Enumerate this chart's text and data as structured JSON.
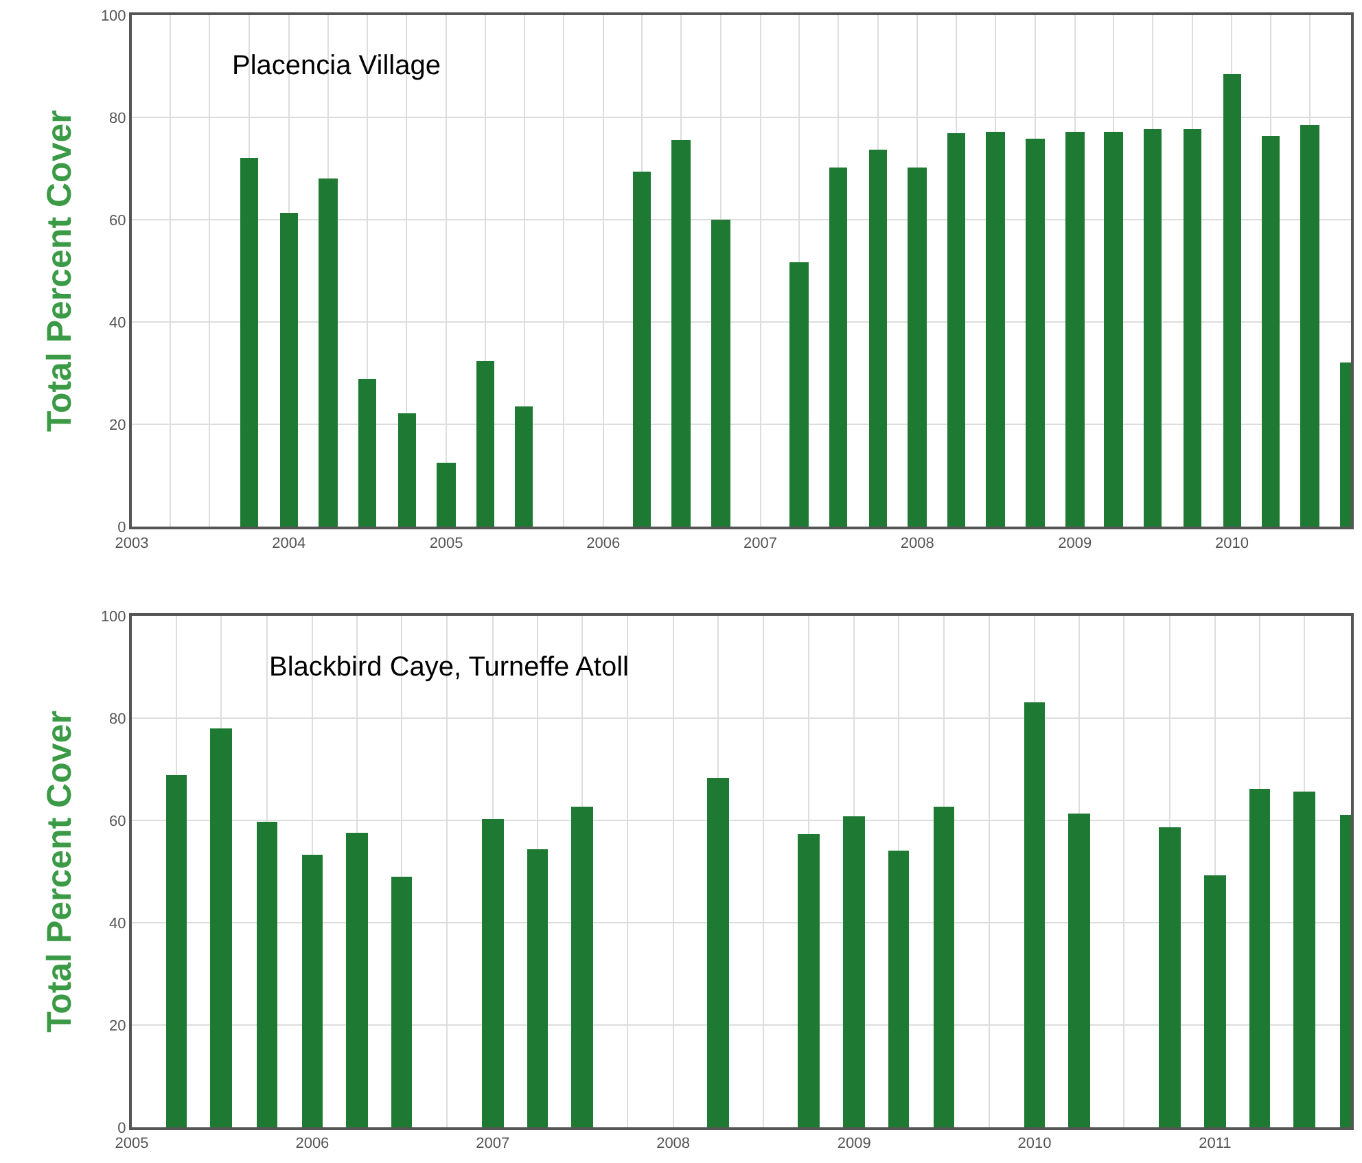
{
  "chart_data": [
    {
      "type": "bar",
      "ylabel": "Total Percent Cover",
      "annotations": [
        "Placencia Village"
      ],
      "color": "#1e7a32",
      "x": [
        "2003-10",
        "2004-01",
        "2004-04",
        "2004-07",
        "2004-10",
        "2005-01",
        "2005-04",
        "2005-07",
        "2006-04",
        "2006-07",
        "2006-10",
        "2007-04",
        "2007-07",
        "2007-10",
        "2008-01",
        "2008-04",
        "2008-07",
        "2008-10",
        "2009-01",
        "2009-04",
        "2009-07",
        "2009-10",
        "2010-01",
        "2010-04",
        "2010-07",
        "2010-10"
      ],
      "values": [
        72,
        61.4,
        68.1,
        28.8,
        22.3,
        12.5,
        32.4,
        23.4,
        69.4,
        75.5,
        59.9,
        51.7,
        70.1,
        73.7,
        70.1,
        76.8,
        77.1,
        75.9,
        77.1,
        77.1,
        77.8,
        77.7,
        88.5,
        76.4,
        78.6,
        32.2
      ],
      "xlim": [
        "2003-01-01",
        "2010-10-05"
      ],
      "xticks": [
        {
          "value": "2003-01-01",
          "label": "2003"
        },
        {
          "value": "2003-04-01",
          "label": null
        },
        {
          "value": "2003-07-01",
          "label": null
        },
        {
          "value": "2003-10-01",
          "label": null
        },
        {
          "value": "2004-01-01",
          "label": "2004"
        },
        {
          "value": "2004-04-01",
          "label": null
        },
        {
          "value": "2004-07-01",
          "label": null
        },
        {
          "value": "2004-10-01",
          "label": null
        },
        {
          "value": "2005-01-01",
          "label": "2005"
        },
        {
          "value": "2005-04-01",
          "label": null
        },
        {
          "value": "2005-07-01",
          "label": null
        },
        {
          "value": "2005-10-01",
          "label": null
        },
        {
          "value": "2006-01-01",
          "label": "2006"
        },
        {
          "value": "2006-04-01",
          "label": null
        },
        {
          "value": "2006-07-01",
          "label": null
        },
        {
          "value": "2006-10-01",
          "label": null
        },
        {
          "value": "2007-01-01",
          "label": "2007"
        },
        {
          "value": "2007-04-01",
          "label": null
        },
        {
          "value": "2007-07-01",
          "label": null
        },
        {
          "value": "2007-10-01",
          "label": null
        },
        {
          "value": "2008-01-01",
          "label": "2008"
        },
        {
          "value": "2008-04-01",
          "label": null
        },
        {
          "value": "2008-07-01",
          "label": null
        },
        {
          "value": "2008-10-01",
          "label": null
        },
        {
          "value": "2009-01-01",
          "label": "2009"
        },
        {
          "value": "2009-04-01",
          "label": null
        },
        {
          "value": "2009-07-01",
          "label": null
        },
        {
          "value": "2009-10-01",
          "label": null
        },
        {
          "value": "2010-01-01",
          "label": "2010"
        },
        {
          "value": "2010-04-01",
          "label": null
        },
        {
          "value": "2010-07-01",
          "label": null
        }
      ],
      "ylim": [
        0,
        100
      ],
      "yticks": [
        0,
        20,
        40,
        60,
        80,
        100
      ],
      "grid": true
    },
    {
      "type": "bar",
      "ylabel": "Total Percent Cover",
      "annotations": [
        "Blackbird Caye, Turneffe Atoll"
      ],
      "color": "#1e7a32",
      "x": [
        "2005-04",
        "2005-07",
        "2005-10",
        "2006-01",
        "2006-04",
        "2006-07",
        "2007-01",
        "2007-04",
        "2007-07",
        "2008-04",
        "2008-10",
        "2009-01",
        "2009-04",
        "2009-07",
        "2010-01",
        "2010-04",
        "2010-10",
        "2011-01",
        "2011-04",
        "2011-07",
        "2011-10"
      ],
      "values": [
        69,
        78.1,
        59.8,
        53.3,
        57.7,
        48.9,
        60.3,
        54.3,
        62.6,
        68.4,
        57.2,
        60.9,
        54.2,
        62.7,
        83,
        61.4,
        58.8,
        49.2,
        66.2,
        65.6,
        61.1
      ],
      "xlim": [
        "2005-01-01",
        "2011-10-03"
      ],
      "xticks": [
        {
          "value": "2005-01-01",
          "label": "2005"
        },
        {
          "value": "2005-04-01",
          "label": null
        },
        {
          "value": "2005-07-01",
          "label": null
        },
        {
          "value": "2005-10-01",
          "label": null
        },
        {
          "value": "2006-01-01",
          "label": "2006"
        },
        {
          "value": "2006-04-01",
          "label": null
        },
        {
          "value": "2006-07-01",
          "label": null
        },
        {
          "value": "2006-10-01",
          "label": null
        },
        {
          "value": "2007-01-01",
          "label": "2007"
        },
        {
          "value": "2007-04-01",
          "label": null
        },
        {
          "value": "2007-07-01",
          "label": null
        },
        {
          "value": "2007-10-01",
          "label": null
        },
        {
          "value": "2008-01-01",
          "label": "2008"
        },
        {
          "value": "2008-04-01",
          "label": null
        },
        {
          "value": "2008-07-01",
          "label": null
        },
        {
          "value": "2008-10-01",
          "label": null
        },
        {
          "value": "2009-01-01",
          "label": "2009"
        },
        {
          "value": "2009-04-01",
          "label": null
        },
        {
          "value": "2009-07-01",
          "label": null
        },
        {
          "value": "2009-10-01",
          "label": null
        },
        {
          "value": "2010-01-01",
          "label": "2010"
        },
        {
          "value": "2010-04-01",
          "label": null
        },
        {
          "value": "2010-07-01",
          "label": null
        },
        {
          "value": "2010-10-01",
          "label": null
        },
        {
          "value": "2011-01-01",
          "label": "2011"
        },
        {
          "value": "2011-04-01",
          "label": null
        },
        {
          "value": "2011-07-01",
          "label": null
        }
      ],
      "ylim": [
        0,
        100
      ],
      "yticks": [
        0,
        20,
        40,
        60,
        80,
        100
      ],
      "grid": true
    }
  ]
}
